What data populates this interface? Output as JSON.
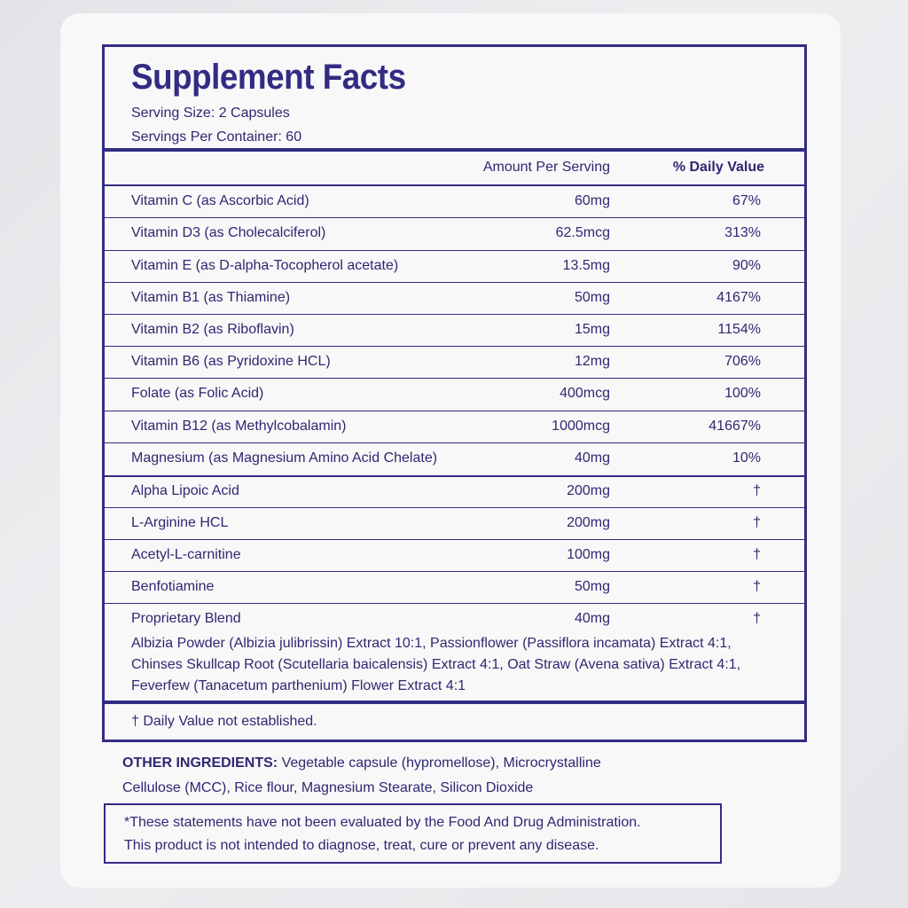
{
  "title": "Supplement Facts",
  "serving_size": "Serving Size: 2 Capsules",
  "servings_per_container": "Servings Per Container: 60",
  "headers": {
    "amount": "Amount Per Serving",
    "daily_value": "% Daily Value"
  },
  "rows": [
    {
      "name": "Vitamin C (as Ascorbic Acid)",
      "amount": "60mg",
      "dv": "67%"
    },
    {
      "name": "Vitamin D3 (as Cholecalciferol)",
      "amount": "62.5mcg",
      "dv": "313%"
    },
    {
      "name": "Vitamin E (as D-alpha-Tocopherol acetate)",
      "amount": "13.5mg",
      "dv": "90%"
    },
    {
      "name": "Vitamin B1 (as Thiamine)",
      "amount": "50mg",
      "dv": "4167%"
    },
    {
      "name": "Vitamin B2 (as Riboflavin)",
      "amount": "15mg",
      "dv": "1154%"
    },
    {
      "name": "Vitamin B6 (as Pyridoxine HCL)",
      "amount": "12mg",
      "dv": "706%"
    },
    {
      "name": "Folate (as Folic Acid)",
      "amount": "400mcg",
      "dv": "100%"
    },
    {
      "name": "Vitamin B12 (as Methylcobalamin)",
      "amount": "1000mcg",
      "dv": "41667%"
    },
    {
      "name": "Magnesium (as Magnesium Amino Acid Chelate)",
      "amount": "40mg",
      "dv": "10%"
    },
    {
      "name": "Alpha Lipoic Acid",
      "amount": "200mg",
      "dv": "†"
    },
    {
      "name": "L-Arginine HCL",
      "amount": "200mg",
      "dv": "†"
    },
    {
      "name": "Acetyl-L-carnitine",
      "amount": "100mg",
      "dv": "†"
    },
    {
      "name": "Benfotiamine",
      "amount": "50mg",
      "dv": "†"
    },
    {
      "name": "Proprietary Blend",
      "amount": "40mg",
      "dv": "†"
    }
  ],
  "blend_line1": "Albizia Powder (Albizia julibrissin) Extract 10:1, Passionflower (Passiflora incamata) Extract 4:1,",
  "blend_line2": "Chinses Skullcap Root (Scutellaria baicalensis) Extract 4:1, Oat Straw (Avena sativa) Extract 4:1,",
  "blend_line3": "Feverfew (Tanacetum parthenium) Flower Extract 4:1",
  "footnote": "† Daily Value not established.",
  "other_ingredients": {
    "label": "OTHER INGREDIENTS:",
    "text": " Vegetable capsule (hypromellose), Microcrystalline Cellulose (MCC), Rice flour, Magnesium Stearate, Silicon Dioxide"
  },
  "disclaimer_line1": "*These statements have not been evaluated by the Food And Drug Administration.",
  "disclaimer_line2": "This product is not intended to diagnose, treat, cure or prevent any disease."
}
